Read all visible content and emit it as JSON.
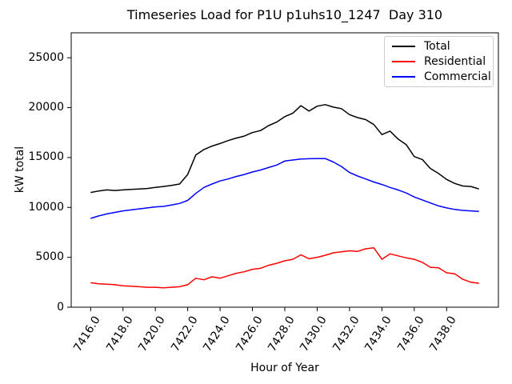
{
  "chart_data": {
    "type": "line",
    "title": "Timeseries Load for P1U p1uhs10_1247  Day 310",
    "xlabel": "Hour of Year",
    "ylabel": "kW total",
    "xlim": [
      7414.8,
      7441.2
    ],
    "ylim": [
      0,
      27500
    ],
    "grid": false,
    "legend_position": "upper right",
    "xticks": [
      7416,
      7418,
      7420,
      7422,
      7424,
      7426,
      7428,
      7430,
      7432,
      7434,
      7436,
      7438
    ],
    "xtick_labels": [
      "7416.0",
      "7418.0",
      "7420.0",
      "7422.0",
      "7424.0",
      "7426.0",
      "7428.0",
      "7430.0",
      "7432.0",
      "7434.0",
      "7436.0",
      "7438.0"
    ],
    "yticks": [
      0,
      5000,
      10000,
      15000,
      20000,
      25000
    ],
    "ytick_labels": [
      "0",
      "5000",
      "10000",
      "15000",
      "20000",
      "25000"
    ],
    "x": [
      7416,
      7416.5,
      7417,
      7417.5,
      7418,
      7418.5,
      7419,
      7419.5,
      7420,
      7420.5,
      7421,
      7421.5,
      7422,
      7422.5,
      7423,
      7423.5,
      7424,
      7424.5,
      7425,
      7425.5,
      7426,
      7426.5,
      7427,
      7427.5,
      7428,
      7428.5,
      7429,
      7429.5,
      7430,
      7430.5,
      7431,
      7431.5,
      7432,
      7432.5,
      7433,
      7433.5,
      7434,
      7434.5,
      7435,
      7435.5,
      7436,
      7436.5,
      7437,
      7437.5,
      7438,
      7438.5,
      7439,
      7439.5,
      7440
    ],
    "series": [
      {
        "name": "Total",
        "color": "#000000",
        "values": [
          11500,
          11650,
          11750,
          11700,
          11750,
          11800,
          11850,
          11900,
          12000,
          12100,
          12200,
          12350,
          13300,
          15250,
          15800,
          16150,
          16400,
          16700,
          16950,
          17150,
          17500,
          17700,
          18200,
          18550,
          19100,
          19450,
          20200,
          19650,
          20150,
          20300,
          20050,
          19900,
          19300,
          19000,
          18800,
          18300,
          17300,
          17650,
          16850,
          16300,
          15100,
          14800,
          13900,
          13400,
          12800,
          12400,
          12150,
          12100,
          11850
        ]
      },
      {
        "name": "Residential",
        "color": "#ff0000",
        "values": [
          2450,
          2350,
          2300,
          2250,
          2150,
          2100,
          2050,
          2000,
          2000,
          1950,
          2000,
          2050,
          2250,
          2900,
          2750,
          3050,
          2900,
          3150,
          3400,
          3550,
          3800,
          3900,
          4200,
          4400,
          4650,
          4800,
          5250,
          4850,
          5000,
          5200,
          5450,
          5550,
          5650,
          5600,
          5850,
          5950,
          4800,
          5350,
          5150,
          4950,
          4800,
          4500,
          4000,
          3950,
          3450,
          3350,
          2800,
          2500,
          2400
        ]
      },
      {
        "name": "Commercial",
        "color": "#0000ff",
        "values": [
          8900,
          9150,
          9350,
          9500,
          9650,
          9750,
          9850,
          9950,
          10050,
          10100,
          10250,
          10400,
          10700,
          11400,
          12000,
          12350,
          12650,
          12850,
          13100,
          13300,
          13550,
          13750,
          14000,
          14250,
          14650,
          14750,
          14850,
          14880,
          14900,
          14900,
          14550,
          14100,
          13500,
          13150,
          12850,
          12550,
          12300,
          12000,
          11750,
          11450,
          11050,
          10750,
          10450,
          10150,
          9950,
          9800,
          9700,
          9650,
          9600
        ]
      }
    ]
  }
}
